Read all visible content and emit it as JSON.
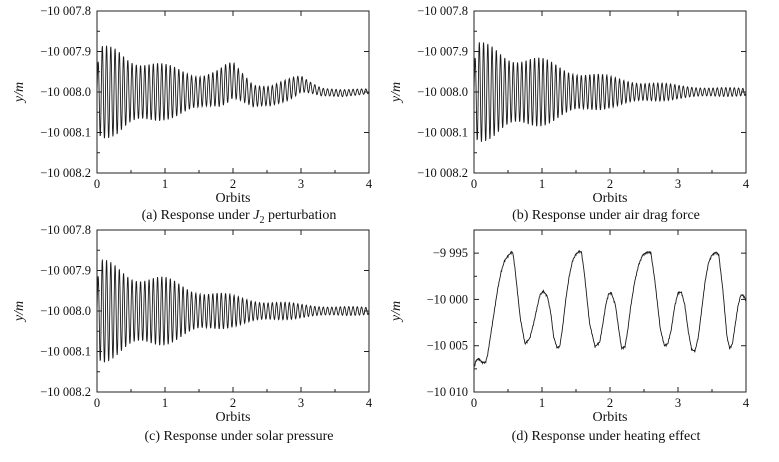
{
  "chart_data": [
    {
      "type": "line",
      "id": "a",
      "caption_prefix": "(a) Response under ",
      "caption_symbol": "J",
      "caption_subscript": "2",
      "caption_suffix": " perturbation",
      "xlabel": "Orbits",
      "ylabel": "y/m",
      "xlim": [
        0,
        4
      ],
      "ylim": [
        -10008.2,
        -10007.8
      ],
      "xticks": [
        0,
        1,
        2,
        3,
        4
      ],
      "xtick_labels": [
        "0",
        "1",
        "2",
        "3",
        "4"
      ],
      "yticks": [
        -10007.8,
        -10007.9,
        -10008.0,
        -10008.1,
        -10008.2
      ],
      "ytick_labels": [
        "−10 007.8",
        "−10 007.9",
        "−10 008.0",
        "−10 008.1",
        "−10 008.2"
      ],
      "series": [
        {
          "style": "oscillation",
          "center": -10008.0,
          "envelope_x": [
            0,
            0.05,
            0.3,
            0.6,
            1.0,
            1.4,
            1.7,
            1.9,
            2.1,
            2.4,
            2.6,
            2.9,
            3.1,
            3.4,
            3.7,
            4.0
          ],
          "envelope_amp": [
            0.06,
            0.115,
            0.115,
            0.095,
            0.07,
            0.055,
            0.05,
            0.05,
            0.04,
            0.035,
            0.03,
            0.025,
            0.018,
            0.012,
            0.008,
            0.007
          ],
          "offset_x": [
            0,
            0.3,
            1.0,
            1.5,
            1.8,
            2.0,
            2.3,
            2.55,
            2.8,
            3.0,
            3.3,
            3.6,
            4.0
          ],
          "offset_y": [
            0,
            0,
            0,
            0,
            0.01,
            0.03,
            -0.01,
            -0.01,
            0.005,
            0.02,
            0.0,
            -0.003,
            0.002
          ]
        }
      ]
    },
    {
      "type": "line",
      "id": "b",
      "caption": "(b) Response under air drag force",
      "xlabel": "Orbits",
      "ylabel": "y/m",
      "xlim": [
        0,
        4
      ],
      "ylim": [
        -10008.2,
        -10007.8
      ],
      "xticks": [
        0,
        1,
        2,
        3,
        4
      ],
      "xtick_labels": [
        "0",
        "1",
        "2",
        "3",
        "4"
      ],
      "yticks": [
        -10007.8,
        -10007.9,
        -10008.0,
        -10008.1,
        -10008.2
      ],
      "ytick_labels": [
        "−10 007.8",
        "−10 007.9",
        "−10 008.0",
        "−10 008.1",
        "−10 008.2"
      ],
      "series": [
        {
          "style": "oscillation",
          "center": -10008.0,
          "envelope_x": [
            0,
            0.05,
            0.3,
            0.8,
            1.5,
            2.0,
            2.5,
            3.0,
            3.5,
            4.0
          ],
          "envelope_amp": [
            0.07,
            0.125,
            0.12,
            0.095,
            0.06,
            0.04,
            0.028,
            0.018,
            0.012,
            0.01
          ],
          "offset_x": [
            0,
            4.0
          ],
          "offset_y": [
            0,
            0
          ]
        }
      ]
    },
    {
      "type": "line",
      "id": "c",
      "caption": "(c) Response under solar pressure",
      "xlabel": "Orbits",
      "ylabel": "y/m",
      "xlim": [
        0,
        4
      ],
      "ylim": [
        -10008.2,
        -10007.8
      ],
      "xticks": [
        0,
        1,
        2,
        3,
        4
      ],
      "xtick_labels": [
        "0",
        "1",
        "2",
        "3",
        "4"
      ],
      "yticks": [
        -10007.8,
        -10007.9,
        -10008.0,
        -10008.1,
        -10008.2
      ],
      "ytick_labels": [
        "−10 007.8",
        "−10 007.9",
        "−10 008.0",
        "−10 008.1",
        "−10 008.2"
      ],
      "series": [
        {
          "style": "oscillation",
          "center": -10008.0,
          "envelope_x": [
            0,
            0.05,
            0.3,
            0.8,
            1.5,
            2.0,
            2.5,
            3.0,
            3.5,
            4.0
          ],
          "envelope_amp": [
            0.07,
            0.13,
            0.12,
            0.095,
            0.06,
            0.04,
            0.027,
            0.018,
            0.012,
            0.01
          ],
          "offset_x": [
            0,
            4.0
          ],
          "offset_y": [
            0,
            0
          ]
        }
      ]
    },
    {
      "type": "line",
      "id": "d",
      "caption": "(d) Response under heating effect",
      "xlabel": "Orbits",
      "ylabel": "y/m",
      "xlim": [
        0,
        4
      ],
      "ylim": [
        -10010,
        -9992.5
      ],
      "xticks": [
        0,
        1,
        2,
        3,
        4
      ],
      "xtick_labels": [
        "0",
        "1",
        "2",
        "3",
        "4"
      ],
      "yticks": [
        -9995,
        -10000,
        -10005,
        -10010
      ],
      "ytick_labels": [
        "−9 995",
        "−10 000",
        "−10 005",
        "−10 010"
      ],
      "series": [
        {
          "style": "line",
          "x": [
            0,
            0.03,
            0.07,
            0.12,
            0.17,
            0.2,
            0.25,
            0.3,
            0.35,
            0.4,
            0.45,
            0.5,
            0.55,
            0.57,
            0.6,
            0.68,
            0.75,
            0.82,
            0.88,
            0.93,
            0.97,
            1.02,
            1.08,
            1.13,
            1.17,
            1.22,
            1.26,
            1.3,
            1.35,
            1.4,
            1.45,
            1.5,
            1.55,
            1.58,
            1.62,
            1.7,
            1.78,
            1.85,
            1.9,
            1.94,
            1.98,
            2.02,
            2.08,
            2.13,
            2.17,
            2.22,
            2.26,
            2.3,
            2.36,
            2.42,
            2.48,
            2.55,
            2.6,
            2.66,
            2.74,
            2.8,
            2.85,
            2.9,
            2.95,
            3.0,
            3.05,
            3.1,
            3.15,
            3.2,
            3.25,
            3.3,
            3.35,
            3.4,
            3.45,
            3.5,
            3.56,
            3.6,
            3.66,
            3.72,
            3.76,
            3.8,
            3.84,
            3.88,
            3.92,
            3.95,
            3.98,
            4.0
          ],
          "y": [
            -10007.4,
            -10006.6,
            -10006.4,
            -10006.8,
            -10006.8,
            -10006.0,
            -10003.6,
            -10001.2,
            -9998.8,
            -9997.0,
            -9995.8,
            -9995.3,
            -9994.9,
            -9994.9,
            -9996.5,
            -10002.0,
            -10004.8,
            -10004.2,
            -10002.5,
            -10000.8,
            -9999.5,
            -9999.1,
            -9999.7,
            -10001.5,
            -10004.0,
            -10005.2,
            -10005.1,
            -10003.2,
            -10000.0,
            -9997.5,
            -9995.8,
            -9995.1,
            -9994.8,
            -9994.9,
            -9997.0,
            -10002.6,
            -10005.1,
            -10004.6,
            -10002.4,
            -10000.5,
            -9999.4,
            -9999.3,
            -10000.6,
            -10003.3,
            -10005.3,
            -10005.1,
            -10003.4,
            -10001.0,
            -9998.2,
            -9996.3,
            -9995.2,
            -9994.9,
            -9994.9,
            -9998.0,
            -10003.2,
            -10005.0,
            -10004.8,
            -10003.3,
            -10000.8,
            -9999.3,
            -9999.2,
            -10000.6,
            -10003.4,
            -10005.4,
            -10005.6,
            -10004.0,
            -10001.0,
            -9998.0,
            -9996.0,
            -9995.2,
            -9994.9,
            -9995.2,
            -9999.0,
            -10004.0,
            -10005.3,
            -10004.8,
            -10002.8,
            -10000.8,
            -9999.6,
            -9999.5,
            -9999.8,
            -10000.2
          ]
        }
      ]
    }
  ]
}
